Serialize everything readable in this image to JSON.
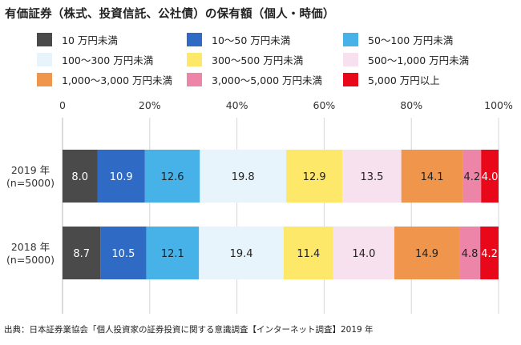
{
  "title": "有価証券（株式、投資信託、公社債）の保有額（個人・時価）",
  "source": "出典：日本証券業協会「個人投資家の証券投資に関する意識調査【インターネット調査】2019 年",
  "chart_data": {
    "type": "bar",
    "orientation": "horizontal",
    "stacked": true,
    "percent_scale": true,
    "xlim": [
      0,
      100
    ],
    "x_ticks": [
      "0",
      "20%",
      "40%",
      "60%",
      "80%",
      "100%"
    ],
    "grid": true,
    "legend_position": "top",
    "categories": [
      {
        "year": "2019 年",
        "n": "(n=5000)"
      },
      {
        "year": "2018 年",
        "n": "(n=5000)"
      }
    ],
    "series": [
      {
        "name": "10 万円未満",
        "color": "#4a4a4a",
        "label_color": "#ffffff",
        "values": [
          8.0,
          8.7
        ]
      },
      {
        "name": "10～50 万円未満",
        "color": "#2f6ac4",
        "label_color": "#ffffff",
        "values": [
          10.9,
          10.5
        ]
      },
      {
        "name": "50～100 万円未満",
        "color": "#46b2e8",
        "label_color": "#222222",
        "values": [
          12.6,
          12.1
        ]
      },
      {
        "name": "100～300 万円未満",
        "color": "#e8f4fc",
        "label_color": "#222222",
        "values": [
          19.8,
          19.4
        ]
      },
      {
        "name": "300～500 万円未満",
        "color": "#fde86a",
        "label_color": "#222222",
        "values": [
          12.9,
          11.4
        ]
      },
      {
        "name": "500～1,000 万円未満",
        "color": "#f8e1ee",
        "label_color": "#222222",
        "values": [
          13.5,
          14.0
        ]
      },
      {
        "name": "1,000～3,000 万円未満",
        "color": "#f0964c",
        "label_color": "#222222",
        "values": [
          14.1,
          14.9
        ]
      },
      {
        "name": "3,000～5,000 万円未満",
        "color": "#ec85a8",
        "label_color": "#222222",
        "values": [
          4.2,
          4.8
        ]
      },
      {
        "name": "5,000 万円以上",
        "color": "#e8081a",
        "label_color": "#ffffff",
        "values": [
          4.0,
          4.2
        ]
      }
    ],
    "value_labels": [
      [
        "8.0",
        "10.9",
        "12.6",
        "19.8",
        "12.9",
        "13.5",
        "14.1",
        "4.2",
        "4.0"
      ],
      [
        "8.7",
        "10.5",
        "12.1",
        "19.4",
        "11.4",
        "14.0",
        "14.9",
        "4.8",
        "4.2"
      ]
    ]
  }
}
